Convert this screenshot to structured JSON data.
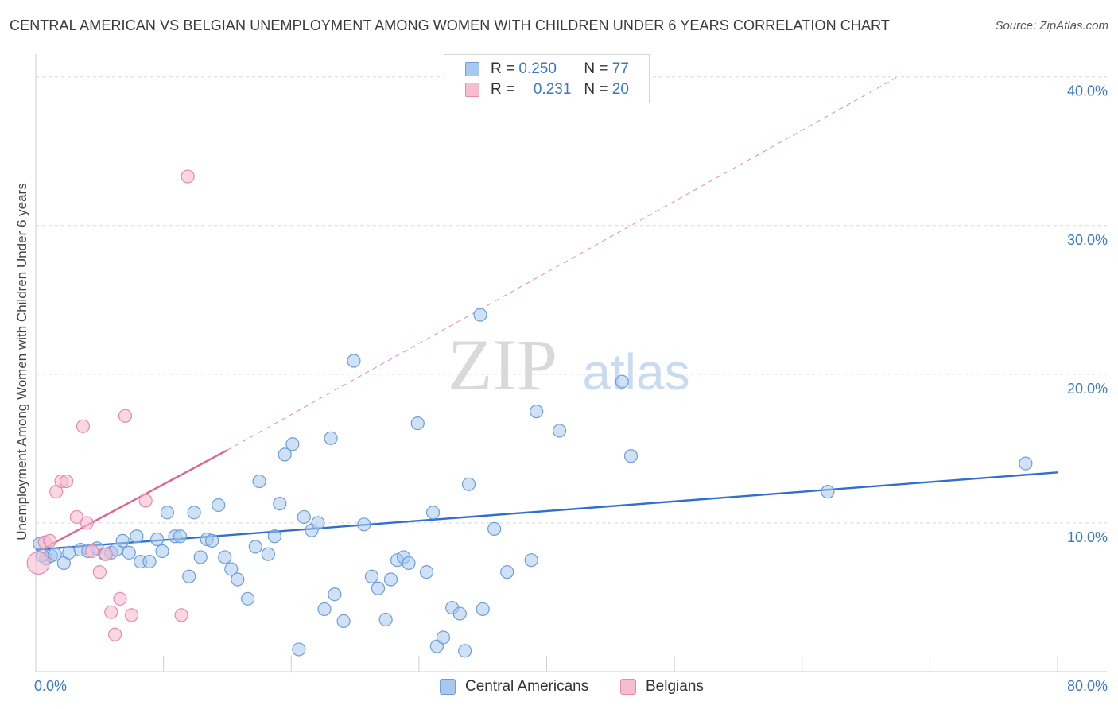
{
  "title": "CENTRAL AMERICAN VS BELGIAN UNEMPLOYMENT AMONG WOMEN WITH CHILDREN UNDER 6 YEARS CORRELATION CHART",
  "source": "Source: ZipAtlas.com",
  "watermark": {
    "zip": "ZIP",
    "atlas": "atlas"
  },
  "legend": {
    "rows": [
      {
        "r_label": "R =",
        "r_value": "0.250",
        "n_label": "N =",
        "n_value": "77"
      },
      {
        "r_label": "R =",
        "r_value": "0.231",
        "n_label": "N =",
        "n_value": "20"
      }
    ]
  },
  "bottom_legend": {
    "central": "Central Americans",
    "belgians": "Belgians"
  },
  "colors": {
    "central_fill": "#a9c8ef",
    "central_stroke": "#6a9fdc",
    "central_line": "#2f6fcf",
    "belgian_fill": "#f6bcd0",
    "belgian_stroke": "#e98aa8",
    "belgian_line": "#e0648f",
    "tick_label": "#3b78c8",
    "grid": "#d8d8d8"
  },
  "chart_data": {
    "type": "scatter",
    "title": "CENTRAL AMERICAN VS BELGIAN UNEMPLOYMENT AMONG WOMEN WITH CHILDREN UNDER 6 YEARS CORRELATION CHART",
    "xlabel": "",
    "ylabel": "Unemployment Among Women with Children Under 6 years",
    "xlim": [
      0,
      80
    ],
    "ylim": [
      0,
      41
    ],
    "x_tick_labels": [
      {
        "value": 0,
        "label": "0.0%"
      },
      {
        "value": 80,
        "label": "80.0%"
      }
    ],
    "y_tick_labels": [
      {
        "value": 10,
        "label": "10.0%"
      },
      {
        "value": 20,
        "label": "20.0%"
      },
      {
        "value": 30,
        "label": "30.0%"
      },
      {
        "value": 40,
        "label": "40.0%"
      }
    ],
    "series": [
      {
        "name": "Central Americans",
        "R": 0.25,
        "N": 77,
        "trend": {
          "x": [
            0,
            80
          ],
          "y": [
            8.2,
            13.4
          ],
          "style": "solid"
        },
        "points": [
          [
            0.3,
            8.6
          ],
          [
            0.8,
            7.6
          ],
          [
            1.2,
            7.8
          ],
          [
            1.5,
            7.9
          ],
          [
            2.2,
            7.3
          ],
          [
            2.6,
            8.0
          ],
          [
            3.5,
            8.2
          ],
          [
            4.1,
            8.1
          ],
          [
            4.8,
            8.3
          ],
          [
            5.4,
            7.9
          ],
          [
            5.9,
            8.0
          ],
          [
            6.3,
            8.2
          ],
          [
            6.8,
            8.8
          ],
          [
            7.3,
            8.0
          ],
          [
            7.9,
            9.1
          ],
          [
            8.2,
            7.4
          ],
          [
            8.9,
            7.4
          ],
          [
            9.5,
            8.9
          ],
          [
            9.9,
            8.1
          ],
          [
            10.3,
            10.7
          ],
          [
            10.9,
            9.1
          ],
          [
            11.3,
            9.1
          ],
          [
            12.0,
            6.4
          ],
          [
            12.4,
            10.7
          ],
          [
            12.9,
            7.7
          ],
          [
            13.4,
            8.9
          ],
          [
            13.8,
            8.8
          ],
          [
            14.3,
            11.2
          ],
          [
            14.8,
            7.7
          ],
          [
            15.3,
            6.9
          ],
          [
            15.8,
            6.2
          ],
          [
            16.6,
            4.9
          ],
          [
            17.2,
            8.4
          ],
          [
            17.5,
            12.8
          ],
          [
            18.2,
            7.9
          ],
          [
            18.7,
            9.1
          ],
          [
            19.1,
            11.3
          ],
          [
            19.5,
            14.6
          ],
          [
            20.1,
            15.3
          ],
          [
            20.6,
            1.5
          ],
          [
            21.0,
            10.4
          ],
          [
            21.6,
            9.5
          ],
          [
            22.1,
            10.0
          ],
          [
            22.6,
            4.2
          ],
          [
            23.1,
            15.7
          ],
          [
            23.4,
            5.2
          ],
          [
            24.1,
            3.4
          ],
          [
            24.9,
            20.9
          ],
          [
            25.7,
            9.9
          ],
          [
            26.3,
            6.4
          ],
          [
            26.8,
            5.6
          ],
          [
            27.4,
            3.5
          ],
          [
            27.8,
            6.2
          ],
          [
            28.3,
            7.5
          ],
          [
            28.8,
            7.7
          ],
          [
            29.2,
            7.3
          ],
          [
            29.9,
            16.7
          ],
          [
            30.6,
            6.7
          ],
          [
            31.1,
            10.7
          ],
          [
            31.4,
            1.7
          ],
          [
            31.9,
            2.3
          ],
          [
            32.6,
            4.3
          ],
          [
            33.2,
            3.9
          ],
          [
            33.6,
            1.4
          ],
          [
            33.9,
            12.6
          ],
          [
            34.8,
            24.0
          ],
          [
            35.0,
            4.2
          ],
          [
            35.9,
            9.6
          ],
          [
            36.9,
            6.7
          ],
          [
            38.8,
            7.5
          ],
          [
            39.2,
            17.5
          ],
          [
            41.0,
            16.2
          ],
          [
            45.9,
            19.5
          ],
          [
            46.6,
            14.5
          ],
          [
            62.0,
            12.1
          ],
          [
            77.5,
            14.0
          ],
          [
            0.5,
            7.8
          ]
        ]
      },
      {
        "name": "Belgians",
        "R": 0.231,
        "N": 20,
        "trend": {
          "x": [
            0,
            15
          ],
          "y": [
            8.0,
            14.9
          ],
          "style": "solid"
        },
        "trend_extension": {
          "x": [
            15,
            67.5
          ],
          "y": [
            14.9,
            40.0
          ],
          "style": "dashed"
        },
        "points": [
          [
            0.2,
            7.3
          ],
          [
            0.7,
            8.7
          ],
          [
            1.1,
            8.8
          ],
          [
            1.6,
            12.1
          ],
          [
            2.0,
            12.8
          ],
          [
            2.4,
            12.8
          ],
          [
            3.2,
            10.4
          ],
          [
            4.0,
            10.0
          ],
          [
            4.4,
            8.1
          ],
          [
            5.0,
            6.7
          ],
          [
            5.5,
            7.9
          ],
          [
            5.9,
            4.0
          ],
          [
            6.2,
            2.5
          ],
          [
            6.6,
            4.9
          ],
          [
            7.0,
            17.2
          ],
          [
            7.5,
            3.8
          ],
          [
            8.6,
            11.5
          ],
          [
            11.4,
            3.8
          ],
          [
            11.9,
            33.3
          ],
          [
            3.7,
            16.5
          ]
        ]
      }
    ]
  }
}
